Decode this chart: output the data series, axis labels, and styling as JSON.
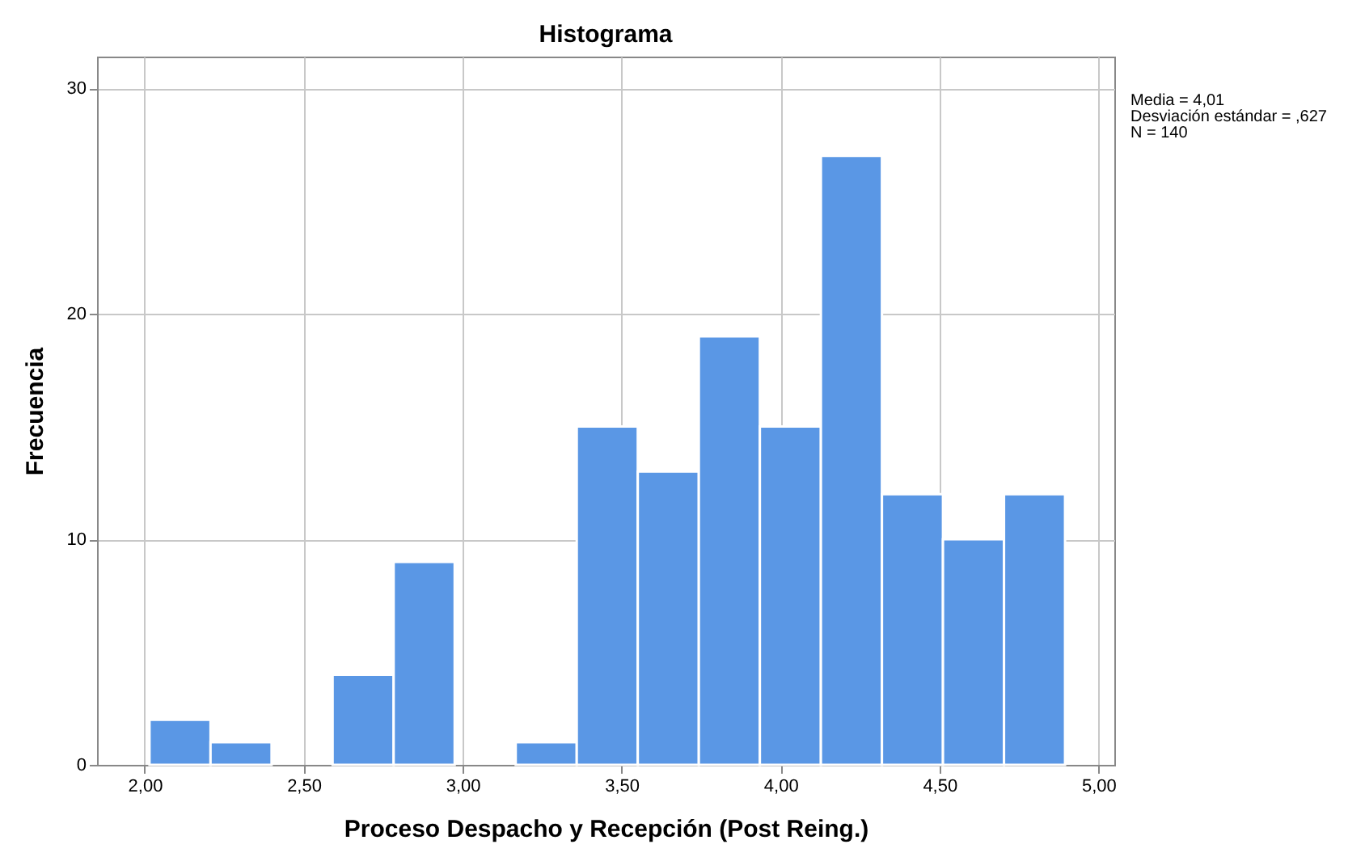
{
  "chart_data": {
    "type": "histogram",
    "title": "Histograma",
    "xlabel": "Proceso Despacho y Recepción (Post Reing.)",
    "ylabel": "Frecuencia",
    "bins": [
      2.015,
      2.207,
      2.399,
      2.591,
      2.783,
      2.975,
      3.167,
      3.359,
      3.551,
      3.743,
      3.935,
      4.127,
      4.319,
      4.511,
      4.703,
      4.895
    ],
    "values": [
      2,
      1,
      0,
      4,
      9,
      0,
      1,
      15,
      13,
      19,
      15,
      27,
      12,
      10,
      12
    ],
    "color": "#5a97e5",
    "xlim": [
      1.85,
      5.05
    ],
    "xticks": [
      {
        "value": 2,
        "label": "2,00"
      },
      {
        "value": 2.5,
        "label": "2,50"
      },
      {
        "value": 3,
        "label": "3,00"
      },
      {
        "value": 3.5,
        "label": "3,50"
      },
      {
        "value": 4,
        "label": "4,00"
      },
      {
        "value": 4.5,
        "label": "4,50"
      },
      {
        "value": 5,
        "label": "5,00"
      }
    ],
    "ylim": [
      0,
      31.4
    ],
    "yticks": [
      0,
      10,
      20,
      30
    ],
    "grid": true,
    "annotations": [
      "Media = 4,01",
      "Desviación estándar = ,627",
      "N = 140"
    ]
  }
}
